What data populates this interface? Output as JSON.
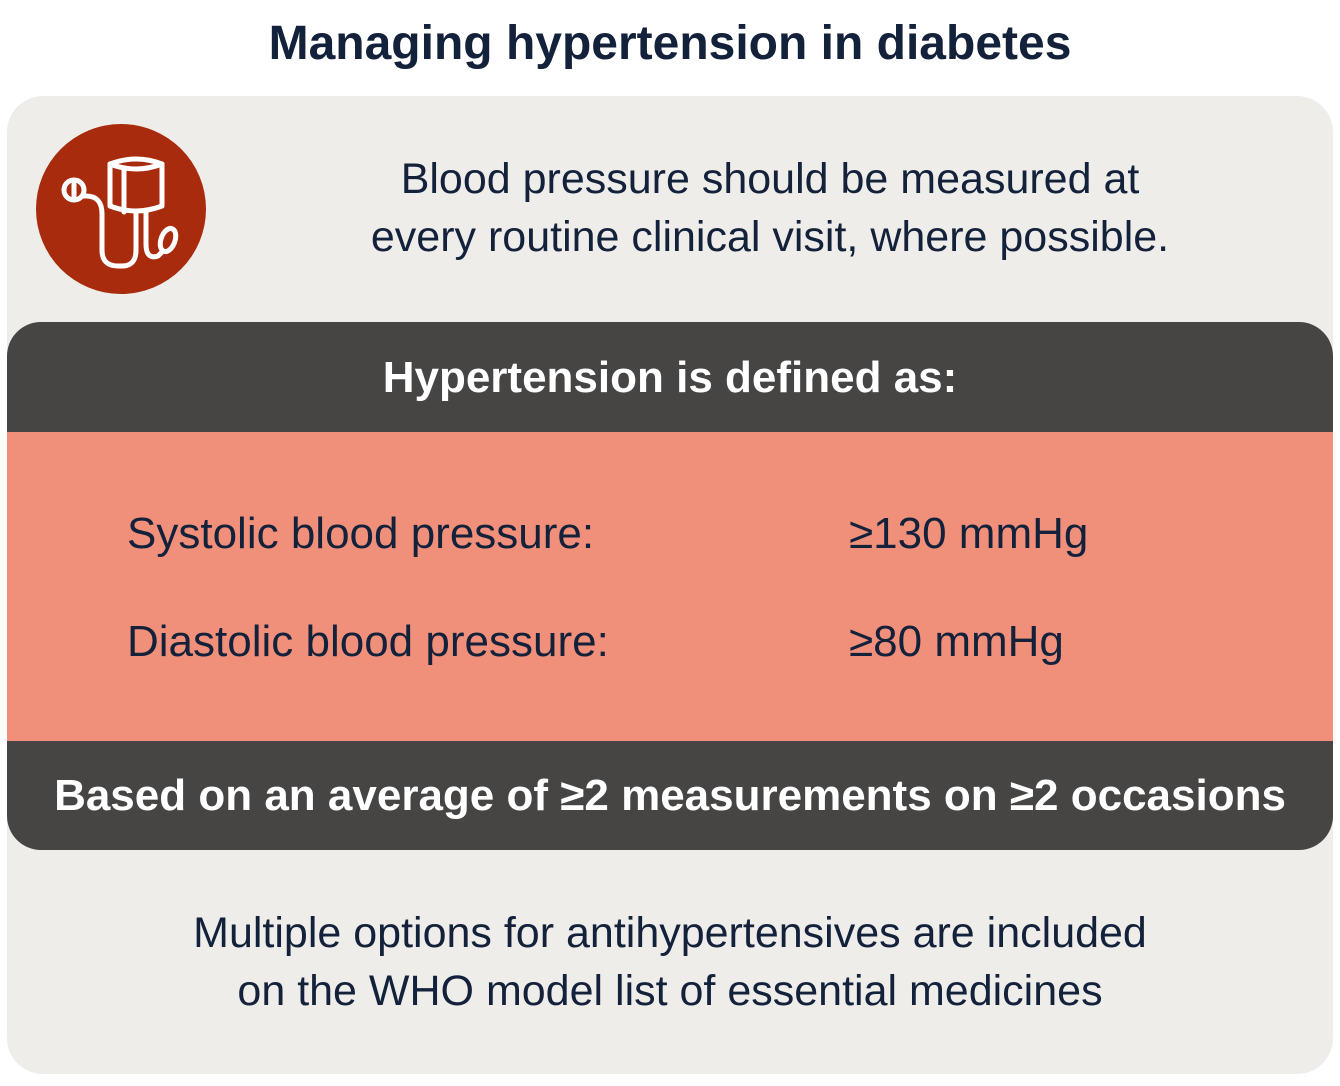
{
  "title": "Managing hypertension in diabetes",
  "icon": "blood-pressure-monitor-icon",
  "intro": {
    "line1": "Blood pressure should be measured at",
    "line2": "every routine clinical visit, where possible."
  },
  "definition": {
    "header": "Hypertension is defined as:",
    "rows": [
      {
        "label": "Systolic blood pressure:",
        "value": "≥130 mmHg"
      },
      {
        "label": "Diastolic blood pressure:",
        "value": "≥80 mmHg"
      }
    ],
    "footer": "Based on an average of ≥2 measurements on ≥2 occasions"
  },
  "outro": {
    "line1": "Multiple options for antihypertensives are included",
    "line2": "on the WHO model list of essential medicines"
  },
  "colors": {
    "title_text": "#13213b",
    "card_bg": "#eeedea",
    "icon_bg": "#a82b0d",
    "dark_band": "#474544",
    "salmon_band": "#f0907a"
  }
}
